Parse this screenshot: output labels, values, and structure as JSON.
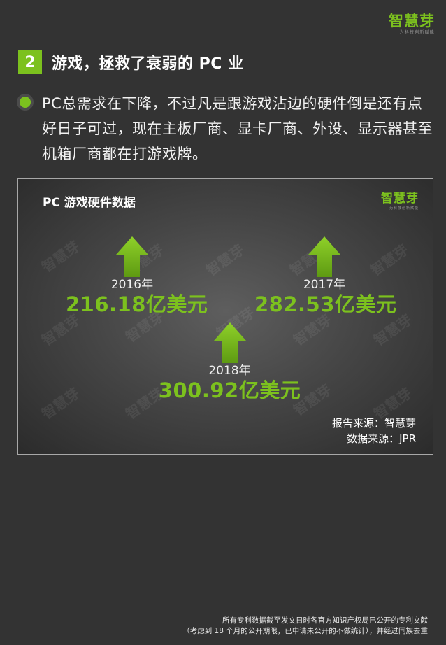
{
  "brand": {
    "name": "智慧芽",
    "tagline": "为科技创新赋能"
  },
  "section": {
    "number": "2",
    "title": "游戏，拯救了衰弱的 PC 业"
  },
  "bullet_text": "PC总需求在下降，不过凡是跟游戏沾边的硬件倒是还有点好日子可过，现在主板厂商、显卡厂商、外设、显示器甚至机箱厂商都在打游戏牌。",
  "panel": {
    "title": "PC 游戏硬件数据",
    "watermark": "智慧芽",
    "stats": [
      {
        "year": "2016年",
        "value": "216.18亿美元"
      },
      {
        "year": "2017年",
        "value": "282.53亿美元"
      },
      {
        "year": "2018年",
        "value": "300.92亿美元"
      }
    ],
    "source_report": "报告来源：智慧芽",
    "source_data": "数据来源：JPR"
  },
  "footer": {
    "line1": "所有专利数据截至发文日时各官方知识产权局已公开的专利文献",
    "line2": "（考虑到 18 个月的公开期限，已申请未公开的不做统计），并经过同族去重"
  },
  "colors": {
    "accent": "#7cc11e",
    "background": "#333333"
  }
}
